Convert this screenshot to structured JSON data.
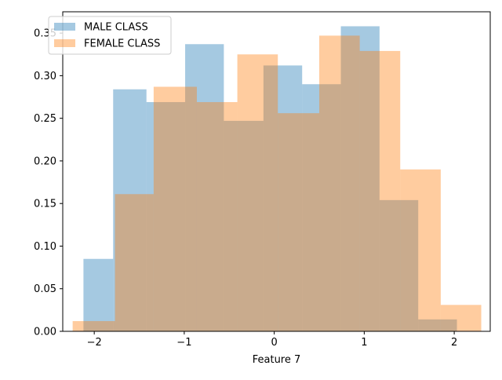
{
  "chart_data": {
    "type": "bar",
    "subtype": "overlapping-histogram",
    "xlabel": "Feature 7",
    "ylabel": "",
    "title": "",
    "xlim": [
      -2.35,
      2.4
    ],
    "ylim": [
      0,
      0.375
    ],
    "x_ticks": [
      -2,
      -1,
      0,
      1,
      2
    ],
    "x_tick_labels": [
      "−2",
      "−1",
      "0",
      "1",
      "2"
    ],
    "y_ticks": [
      0.0,
      0.05,
      0.1,
      0.15,
      0.2,
      0.25,
      0.3,
      0.35
    ],
    "y_tick_labels": [
      "0.00",
      "0.05",
      "0.10",
      "0.15",
      "0.20",
      "0.25",
      "0.30",
      "0.35"
    ],
    "grid": false,
    "legend_position": "top-left",
    "series": [
      {
        "name": "MALE CLASS",
        "color": "#1f77b4",
        "alpha": 0.4,
        "bin_edges": [
          -2.12,
          -1.79,
          -1.42,
          -0.99,
          -0.56,
          -0.12,
          0.31,
          0.74,
          1.17,
          1.6,
          2.03
        ],
        "values": [
          0.085,
          0.284,
          0.269,
          0.337,
          0.247,
          0.312,
          0.29,
          0.358,
          0.154,
          0.014
        ]
      },
      {
        "name": "FEMALE CLASS",
        "color": "#ff7f0e",
        "alpha": 0.4,
        "bin_edges": [
          -2.24,
          -1.77,
          -1.34,
          -0.86,
          -0.41,
          0.04,
          0.5,
          0.95,
          1.4,
          1.85,
          2.3
        ],
        "values": [
          0.012,
          0.161,
          0.287,
          0.269,
          0.325,
          0.256,
          0.347,
          0.329,
          0.19,
          0.031
        ]
      }
    ]
  }
}
